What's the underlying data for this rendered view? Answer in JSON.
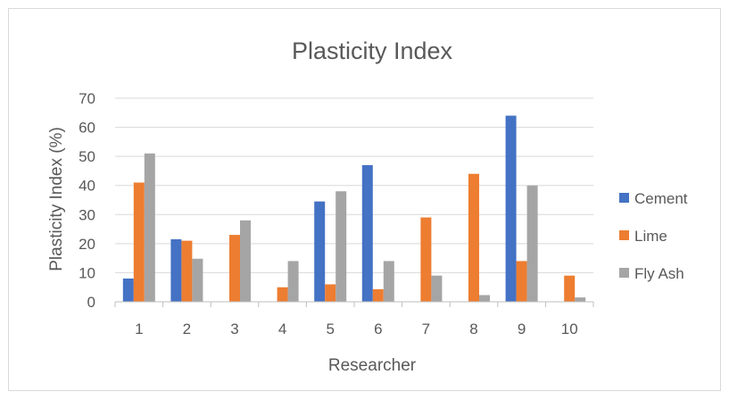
{
  "chart_data": {
    "type": "bar",
    "title": "Plasticity Index",
    "xlabel": "Researcher",
    "ylabel": "Plasticity Index (%)",
    "categories": [
      "1",
      "2",
      "3",
      "4",
      "5",
      "6",
      "7",
      "8",
      "9",
      "10"
    ],
    "ylim": [
      0,
      70
    ],
    "yticks": [
      0,
      10,
      20,
      30,
      40,
      50,
      60,
      70
    ],
    "grid": true,
    "legend_position": "right",
    "series": [
      {
        "name": "Cement",
        "color": "#4472C4",
        "values": [
          8,
          21.5,
          0,
          0,
          34.5,
          47,
          0,
          0,
          64,
          0
        ]
      },
      {
        "name": "Lime",
        "color": "#ED7D31",
        "values": [
          41,
          21,
          23,
          5,
          6,
          4.3,
          29,
          44,
          14,
          9
        ]
      },
      {
        "name": "Fly Ash",
        "color": "#A5A5A5",
        "values": [
          51,
          14.8,
          28,
          14,
          38,
          14,
          9,
          2.3,
          40,
          1.5
        ]
      }
    ]
  }
}
